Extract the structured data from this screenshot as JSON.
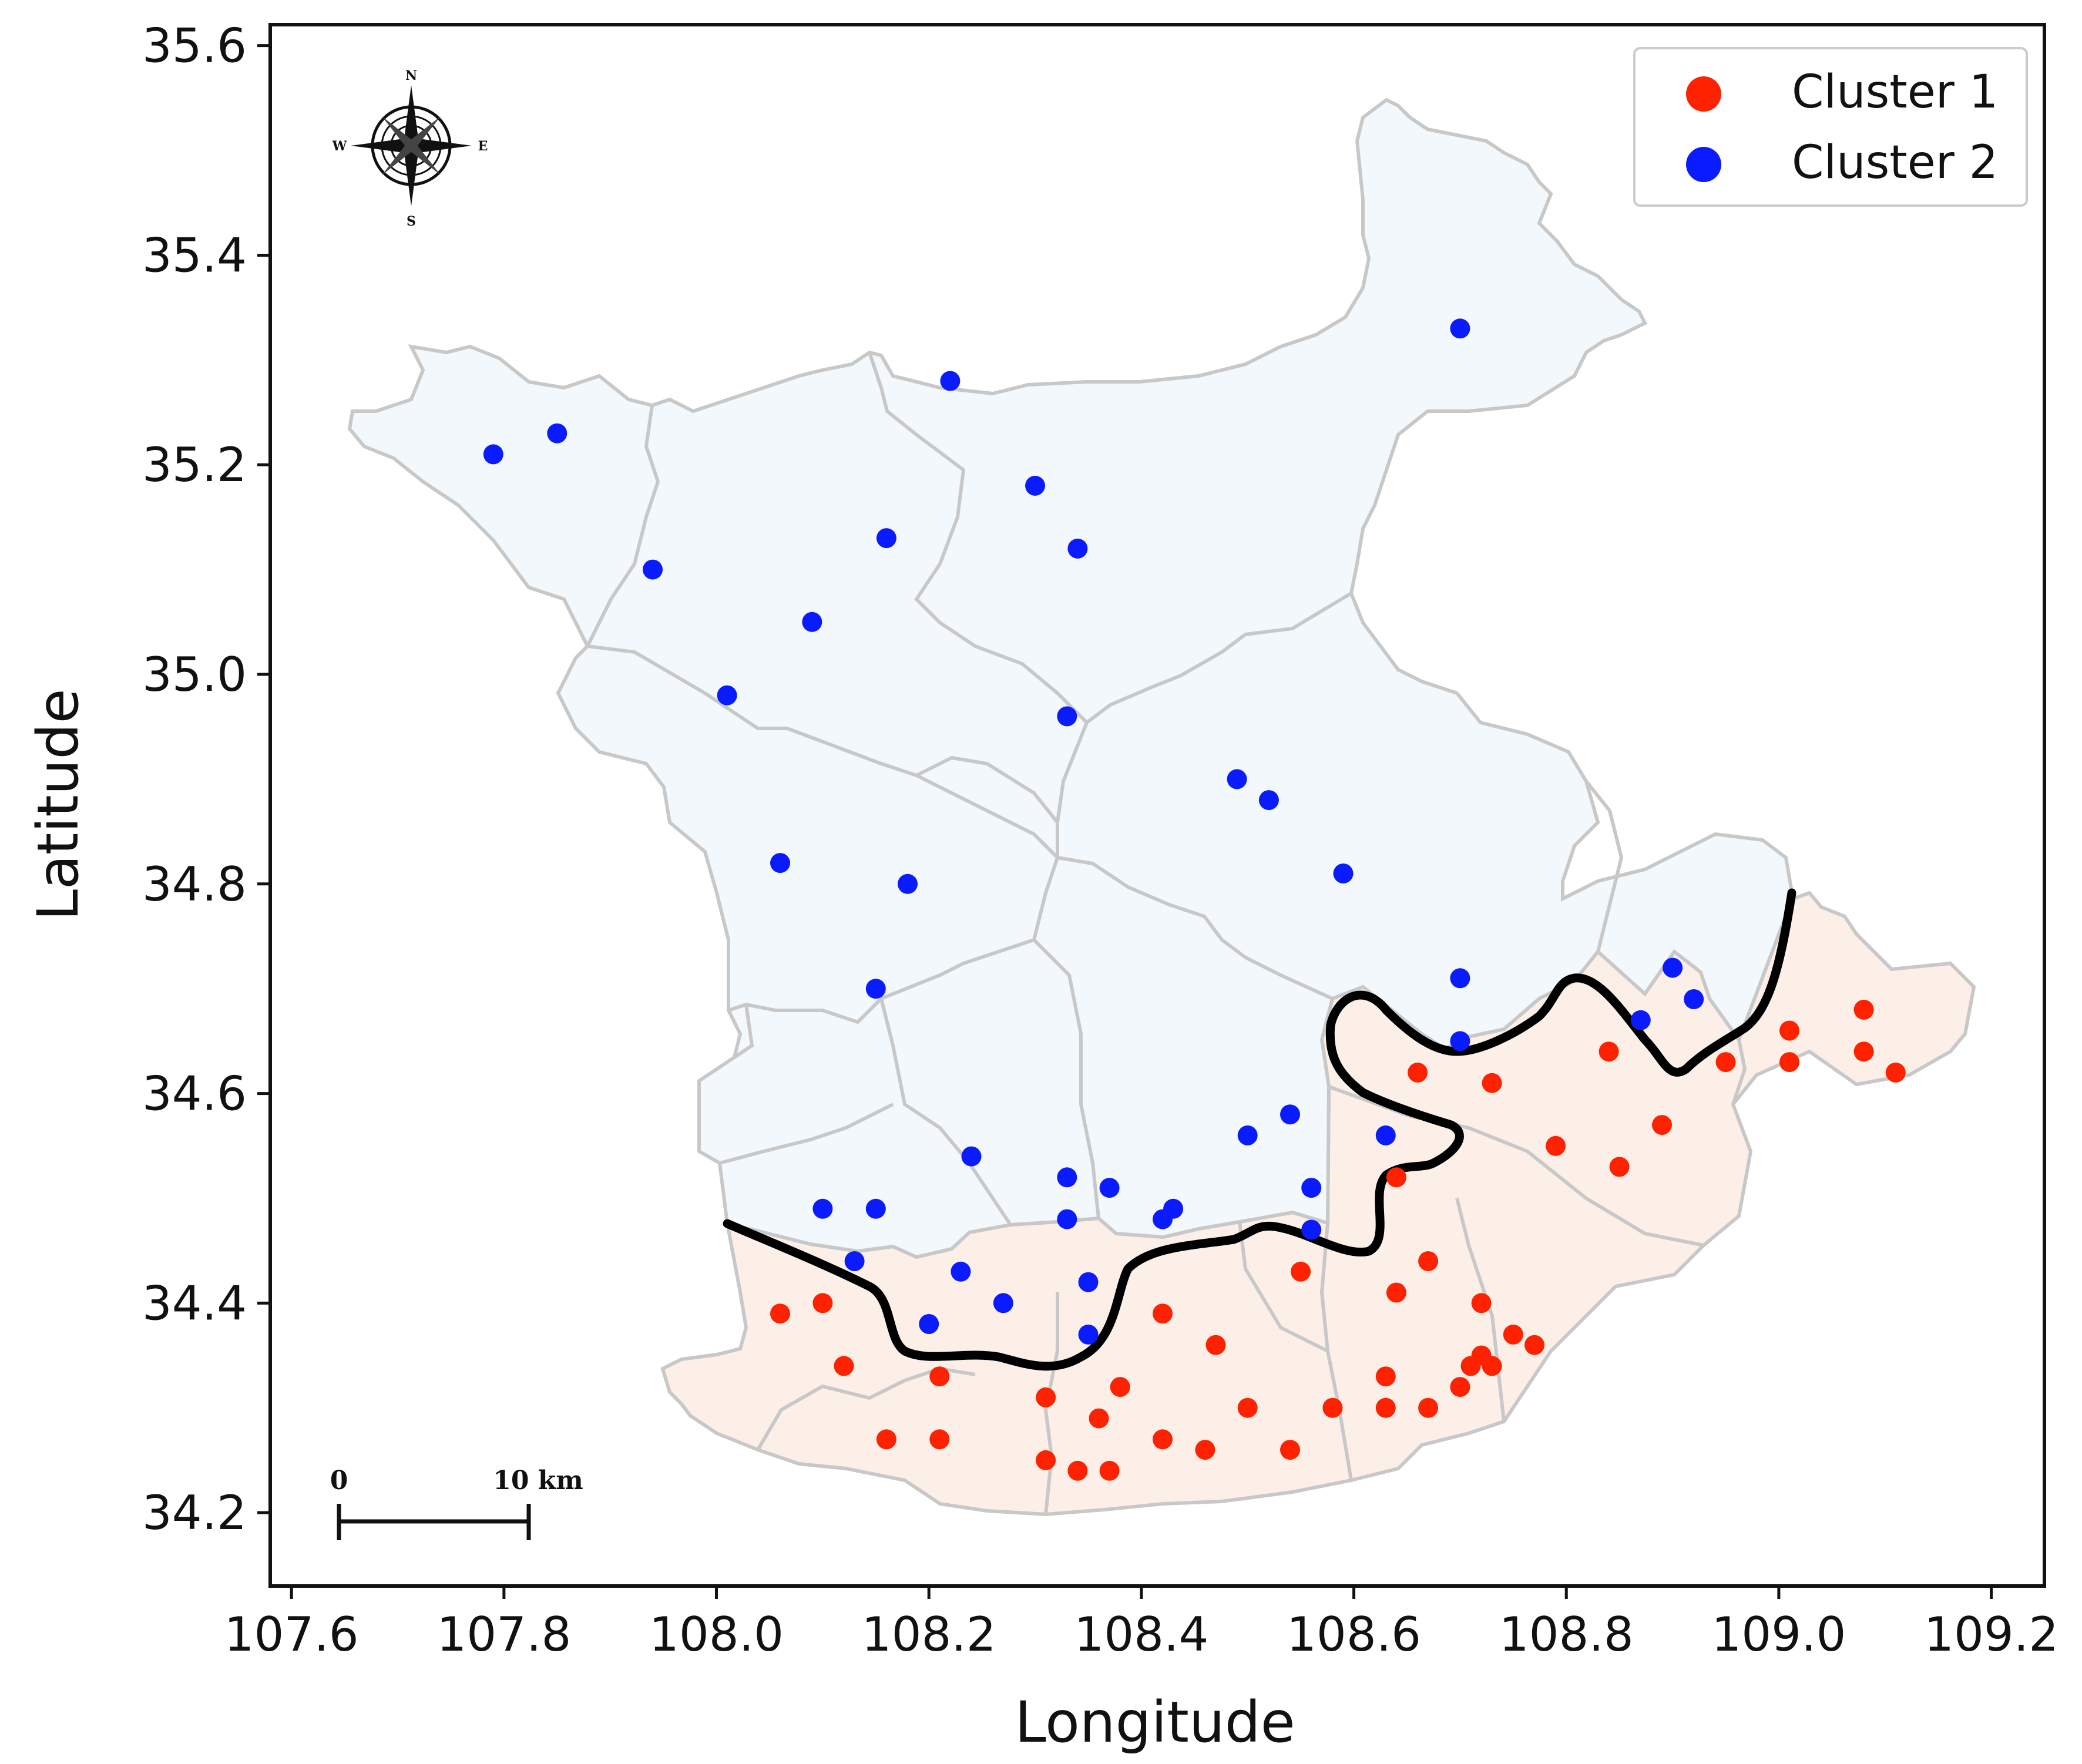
{
  "chart_data": {
    "type": "scatter",
    "title": "",
    "xlabel": "Longitude",
    "ylabel": "Latitude",
    "xlim": [
      107.58,
      109.25
    ],
    "ylim": [
      34.13,
      35.62
    ],
    "xticks": [
      107.6,
      107.8,
      108.0,
      108.2,
      108.4,
      108.6,
      108.8,
      109.0,
      109.2
    ],
    "yticks": [
      34.2,
      34.4,
      34.6,
      34.8,
      35.0,
      35.2,
      35.4,
      35.6
    ],
    "xtick_labels": [
      "107.6",
      "107.8",
      "108.0",
      "108.2",
      "108.4",
      "108.6",
      "108.8",
      "109.0",
      "109.2"
    ],
    "ytick_labels": [
      "34.2",
      "34.4",
      "34.6",
      "34.8",
      "35.0",
      "35.2",
      "35.4",
      "35.6"
    ],
    "grid": false,
    "legend_position": "top-right",
    "series": [
      {
        "name": "Cluster 1",
        "color": "#ff2200",
        "points": [
          [
            108.66,
            34.62
          ],
          [
            108.73,
            34.61
          ],
          [
            108.64,
            34.52
          ],
          [
            108.79,
            34.55
          ],
          [
            108.85,
            34.53
          ],
          [
            108.84,
            34.64
          ],
          [
            108.89,
            34.57
          ],
          [
            108.95,
            34.63
          ],
          [
            109.01,
            34.63
          ],
          [
            109.01,
            34.66
          ],
          [
            109.08,
            34.68
          ],
          [
            109.08,
            34.64
          ],
          [
            109.11,
            34.62
          ],
          [
            108.55,
            34.43
          ],
          [
            108.67,
            34.44
          ],
          [
            108.64,
            34.41
          ],
          [
            108.72,
            34.4
          ],
          [
            108.75,
            34.37
          ],
          [
            108.77,
            34.36
          ],
          [
            108.72,
            34.35
          ],
          [
            108.71,
            34.34
          ],
          [
            108.73,
            34.34
          ],
          [
            108.7,
            34.32
          ],
          [
            108.63,
            34.33
          ],
          [
            108.63,
            34.3
          ],
          [
            108.67,
            34.3
          ],
          [
            108.58,
            34.3
          ],
          [
            108.5,
            34.3
          ],
          [
            108.54,
            34.26
          ],
          [
            108.47,
            34.36
          ],
          [
            108.46,
            34.26
          ],
          [
            108.42,
            34.39
          ],
          [
            108.38,
            34.32
          ],
          [
            108.42,
            34.27
          ],
          [
            108.36,
            34.29
          ],
          [
            108.37,
            34.24
          ],
          [
            108.34,
            34.24
          ],
          [
            108.31,
            34.31
          ],
          [
            108.31,
            34.25
          ],
          [
            108.21,
            34.33
          ],
          [
            108.21,
            34.27
          ],
          [
            108.16,
            34.27
          ],
          [
            108.12,
            34.34
          ],
          [
            108.1,
            34.4
          ],
          [
            108.06,
            34.39
          ]
        ]
      },
      {
        "name": "Cluster 2",
        "color": "#0a1cff",
        "points": [
          [
            107.79,
            35.21
          ],
          [
            107.85,
            35.23
          ],
          [
            107.94,
            35.1
          ],
          [
            108.01,
            34.98
          ],
          [
            108.09,
            35.05
          ],
          [
            108.16,
            35.13
          ],
          [
            108.22,
            35.28
          ],
          [
            108.3,
            35.18
          ],
          [
            108.34,
            35.12
          ],
          [
            108.33,
            34.96
          ],
          [
            108.7,
            35.33
          ],
          [
            108.49,
            34.9
          ],
          [
            108.52,
            34.88
          ],
          [
            108.59,
            34.81
          ],
          [
            108.06,
            34.82
          ],
          [
            108.18,
            34.8
          ],
          [
            108.15,
            34.7
          ],
          [
            108.7,
            34.71
          ],
          [
            108.7,
            34.65
          ],
          [
            108.9,
            34.72
          ],
          [
            108.92,
            34.69
          ],
          [
            108.87,
            34.67
          ],
          [
            108.63,
            34.56
          ],
          [
            108.54,
            34.58
          ],
          [
            108.5,
            34.56
          ],
          [
            108.56,
            34.51
          ],
          [
            108.56,
            34.47
          ],
          [
            108.24,
            34.54
          ],
          [
            108.33,
            34.52
          ],
          [
            108.37,
            34.51
          ],
          [
            108.43,
            34.49
          ],
          [
            108.42,
            34.48
          ],
          [
            108.33,
            34.48
          ],
          [
            108.1,
            34.49
          ],
          [
            108.15,
            34.49
          ],
          [
            108.13,
            34.44
          ],
          [
            108.23,
            34.43
          ],
          [
            108.27,
            34.4
          ],
          [
            108.2,
            34.38
          ],
          [
            108.35,
            34.42
          ],
          [
            108.35,
            34.37
          ]
        ]
      }
    ]
  },
  "legend": {
    "items": [
      {
        "label": "Cluster 1",
        "color": "#ff2200"
      },
      {
        "label": "Cluster 2",
        "color": "#0a1cff"
      }
    ]
  },
  "compass": {
    "n": "N",
    "s": "S",
    "e": "E",
    "w": "W"
  },
  "scale_bar": {
    "start_label": "0",
    "end_label": "10 km"
  },
  "map_colors": {
    "north_region": "#f3f8fc",
    "south_region": "#fcefe8",
    "county_border": "#c8c8c8",
    "divide_line": "#000000"
  }
}
